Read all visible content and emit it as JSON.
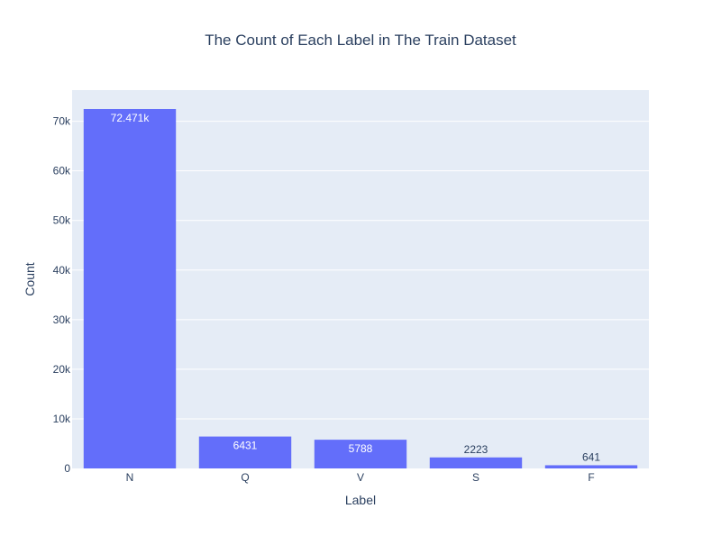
{
  "chart_data": {
    "type": "bar",
    "title": "The Count of Each Label in The Train Dataset",
    "xlabel": "Label",
    "ylabel": "Count",
    "categories": [
      "N",
      "Q",
      "V",
      "S",
      "F"
    ],
    "values": [
      72471,
      6431,
      5788,
      2223,
      641
    ],
    "data_labels": [
      "72.471k",
      "6431",
      "5788",
      "2223",
      "641"
    ],
    "ylim": [
      0,
      76285
    ],
    "yticks": [
      0,
      10000,
      20000,
      30000,
      40000,
      50000,
      60000,
      70000
    ],
    "ytick_labels": [
      "0",
      "10k",
      "20k",
      "30k",
      "40k",
      "50k",
      "60k",
      "70k"
    ],
    "grid": true,
    "legend": "none",
    "colors": {
      "bar": "#636efa",
      "plot_bg": "#e5ecf6",
      "grid": "#ffffff",
      "text": "#2a3f5f"
    }
  }
}
